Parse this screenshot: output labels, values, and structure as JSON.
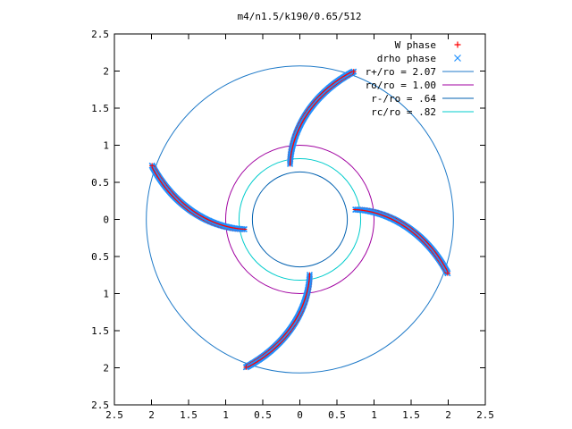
{
  "chart_data": {
    "type": "scatter",
    "title": "m4/n1.5/k190/0.65/512",
    "xlabel": "",
    "ylabel": "",
    "xlim": [
      -2.5,
      2.5
    ],
    "ylim": [
      -2.5,
      2.5
    ],
    "x_ticks": [
      -2.5,
      -2,
      -1.5,
      -1,
      -0.5,
      0,
      0.5,
      1,
      1.5,
      2,
      2.5
    ],
    "y_ticks": [
      -2.5,
      -2,
      -1.5,
      -1,
      -0.5,
      0,
      0.5,
      1,
      1.5,
      2,
      2.5
    ],
    "x_tick_labels": [
      "2.5",
      "2",
      "1.5",
      "1",
      "0.5",
      "0",
      "0.5",
      "1",
      "1.5",
      "2",
      "2.5"
    ],
    "y_tick_labels": [
      "2.5",
      "2",
      "1.5",
      "1",
      "0.5",
      "0",
      "0.5",
      "1",
      "1.5",
      "2",
      "2.5"
    ],
    "grid": false,
    "legend_position": "top-right",
    "series": [
      {
        "name": "W phase",
        "kind": "points",
        "marker": "plus",
        "color": "#ff0000"
      },
      {
        "name": "drho phase",
        "kind": "points",
        "marker": "cross",
        "color": "#1e90ff"
      },
      {
        "name": "r+/ro = 2.07",
        "kind": "circle",
        "radius": 2.07,
        "color": "#1f7ac8"
      },
      {
        "name": "ro/ro = 1.00",
        "kind": "circle",
        "radius": 1.0,
        "color": "#a000a0"
      },
      {
        "name": "r-/ro = .64",
        "kind": "circle",
        "radius": 0.64,
        "color": "#0060b0"
      },
      {
        "name": "rc/ro = .82",
        "kind": "circle",
        "radius": 0.82,
        "color": "#00cccc"
      }
    ],
    "spiral_arms": [
      {
        "r_start": 0.76,
        "theta_start_deg": 10,
        "r_end": 2.12,
        "theta_end_deg": 340
      },
      {
        "r_start": 0.76,
        "theta_start_deg": 100,
        "r_end": 2.12,
        "theta_end_deg": 70
      },
      {
        "r_start": 0.76,
        "theta_start_deg": 190,
        "r_end": 2.12,
        "theta_end_deg": 160
      },
      {
        "r_start": 0.76,
        "theta_start_deg": 280,
        "r_end": 2.12,
        "theta_end_deg": 250
      }
    ]
  }
}
